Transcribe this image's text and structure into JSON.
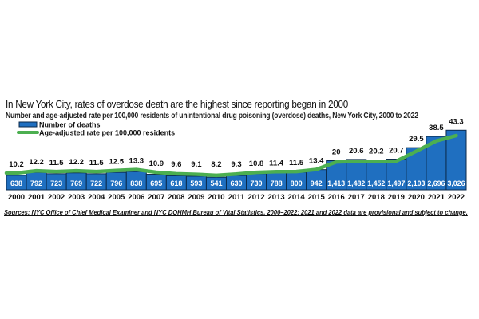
{
  "chart_data": {
    "type": "bar",
    "title": "In New York City, rates of overdose death are the highest since reporting began in 2000",
    "subtitle": "Number and age-adjusted rate per 100,000 residents of unintentional drug poisoning (overdose) deaths, New York City, 2000 to 2022",
    "categories": [
      "2000",
      "2001",
      "2002",
      "2003",
      "2004",
      "2005",
      "2006",
      "2007",
      "2008",
      "2009",
      "2010",
      "2011",
      "2012",
      "2013",
      "2014",
      "2015",
      "2016",
      "2017",
      "2018",
      "2019",
      "2020",
      "2021",
      "2022"
    ],
    "series": [
      {
        "name": "Number of deaths",
        "type": "bar",
        "color": "#1f6fc0",
        "values": [
          638,
          792,
          723,
          769,
          722,
          796,
          838,
          695,
          618,
          593,
          541,
          630,
          730,
          788,
          800,
          942,
          1413,
          1482,
          1452,
          1497,
          2103,
          2696,
          3026
        ],
        "labels": [
          "638",
          "792",
          "723",
          "769",
          "722",
          "796",
          "838",
          "695",
          "618",
          "593",
          "541",
          "630",
          "730",
          "788",
          "800",
          "942",
          "1,413",
          "1,482",
          "1,452",
          "1,497",
          "2,103",
          "2,696",
          "3,026"
        ]
      },
      {
        "name": "Age-adjusted rate per 100,000 residents",
        "type": "line",
        "color": "#4caf50",
        "values": [
          10.2,
          12.2,
          11.5,
          12.2,
          11.5,
          12.5,
          13.3,
          10.9,
          9.6,
          9.1,
          8.2,
          9.3,
          10.8,
          11.4,
          11.5,
          13.4,
          20,
          20.6,
          20.2,
          20.7,
          29.5,
          38.5,
          43.3
        ],
        "labels": [
          "10.2",
          "12.2",
          "11.5",
          "12.2",
          "11.5",
          "12.5",
          "13.3",
          "10.9",
          "9.6",
          "9.1",
          "8.2",
          "9.3",
          "10.8",
          "11.4",
          "11.5",
          "13.4",
          "20",
          "20.6",
          "20.2",
          "20.7",
          "29.5",
          "38.5",
          "43.3"
        ]
      }
    ],
    "legend_position": "top-left",
    "grid": false,
    "source": "Sources: NYC Office of Chief Medical Examiner and NYC DOHMH Bureau of Vital Statistics, 2000–2022; 2021 and 2022 data are provisional and subject to change."
  }
}
